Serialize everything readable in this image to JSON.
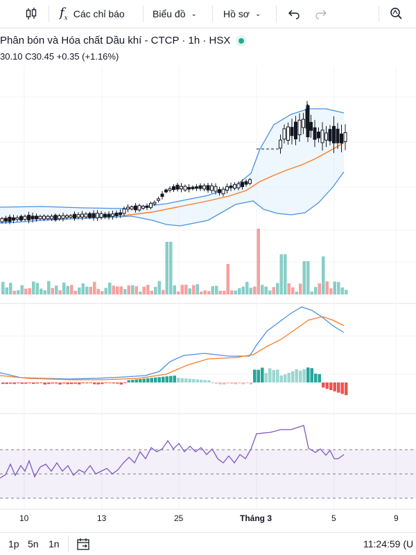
{
  "toolbar": {
    "indicators_label": "Các chỉ báo",
    "chart_type_label": "Biểu đồ",
    "profile_label": "Hồ sơ"
  },
  "legend": {
    "title": "Phân bón và Hóa chất Dầu khí - CTCP · 1h · HSX",
    "ohlc": "30.10  C30.45  +0.35 (+1.16%)",
    "status_color": "#22ab94"
  },
  "x_axis": {
    "labels": [
      "10",
      "13",
      "25",
      "Tháng 3",
      "5",
      "9"
    ]
  },
  "bottom": {
    "timeframes": [
      "1p",
      "5n",
      "1n"
    ],
    "clock": "11:24:59 (U"
  },
  "colors": {
    "up": "#26a69a",
    "down": "#ef5350",
    "band": "#4a90e2",
    "ma": "#ff7a22",
    "rsi": "#7e57c2"
  }
}
